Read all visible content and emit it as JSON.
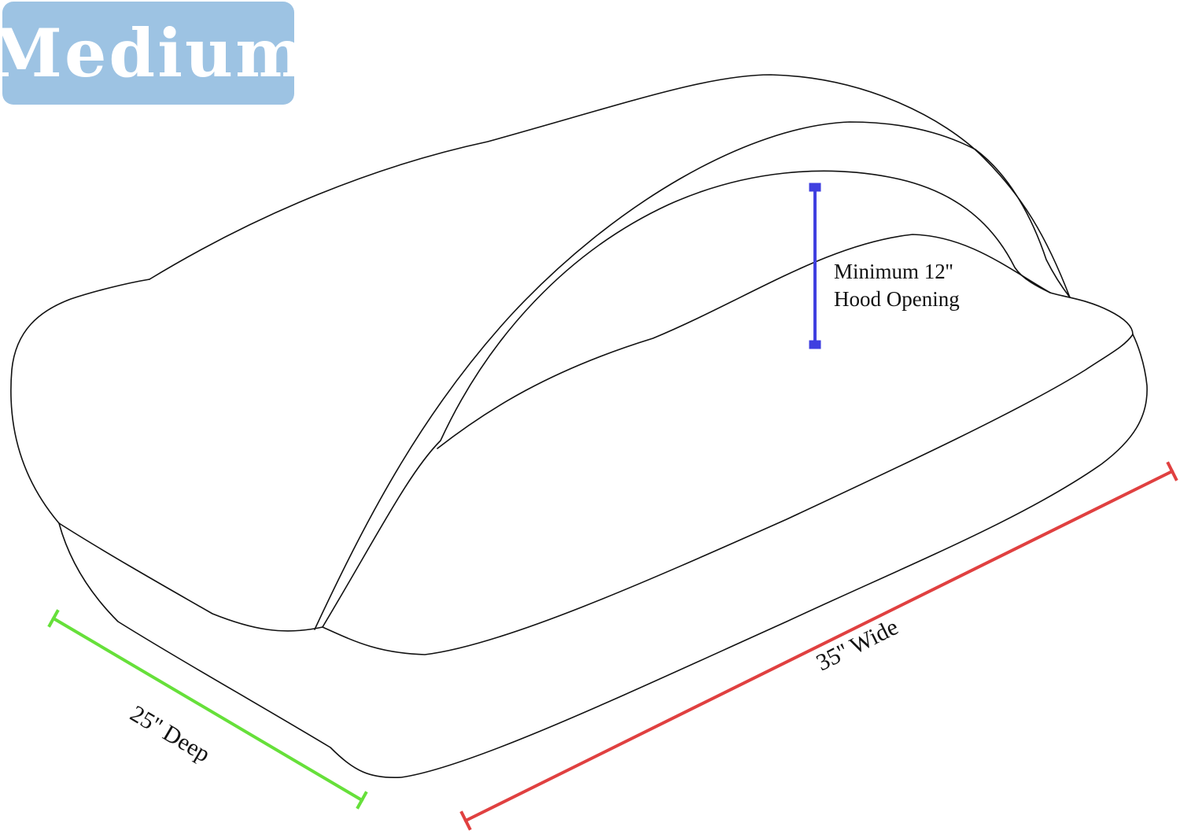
{
  "size_badge": {
    "label": "Medium",
    "color": "#9dc3e3"
  },
  "dimensions": {
    "hood_opening": {
      "line1": "Minimum 12''",
      "line2": "Hood Opening",
      "color": "#3f3fe0"
    },
    "width": {
      "label": "35'' Wide",
      "color": "#e04040"
    },
    "depth": {
      "label": "25'' Deep",
      "color": "#66e03a"
    }
  }
}
